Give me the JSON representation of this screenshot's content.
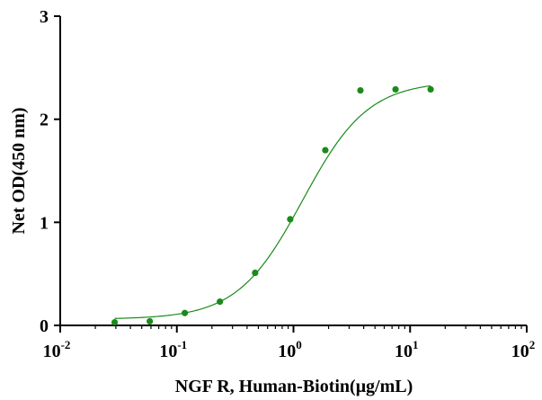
{
  "chart_data": {
    "type": "scatter",
    "title": "",
    "xlabel": "NGF R, Human-Biotin(μg/mL)",
    "ylabel": "Net OD(450 nm)",
    "x_scale": "log10",
    "xlim": [
      0.01,
      100
    ],
    "ylim": [
      0,
      3
    ],
    "x_ticks": [
      {
        "value": 0.01,
        "base": "10",
        "exp": "-2"
      },
      {
        "value": 0.1,
        "base": "10",
        "exp": "-1"
      },
      {
        "value": 1,
        "base": "10",
        "exp": "0"
      },
      {
        "value": 10,
        "base": "10",
        "exp": "1"
      },
      {
        "value": 100,
        "base": "10",
        "exp": "2"
      }
    ],
    "y_ticks": [
      "0",
      "1",
      "2",
      "3"
    ],
    "grid": false,
    "legend": "none",
    "series": [
      {
        "color": "#1a8a1a",
        "x": [
          0.0293,
          0.0586,
          0.117,
          0.234,
          0.469,
          0.938,
          1.875,
          3.75,
          7.5,
          15
        ],
        "y": [
          0.03,
          0.04,
          0.12,
          0.23,
          0.51,
          1.03,
          1.7,
          2.28,
          2.29,
          2.29
        ]
      }
    ],
    "fit_curve": {
      "type": "4PL",
      "color": "#1a8a1a",
      "bottom": 0.06,
      "top": 2.37,
      "ec50": 1.2,
      "hill": 1.55,
      "x_range": [
        0.0293,
        15
      ]
    }
  }
}
